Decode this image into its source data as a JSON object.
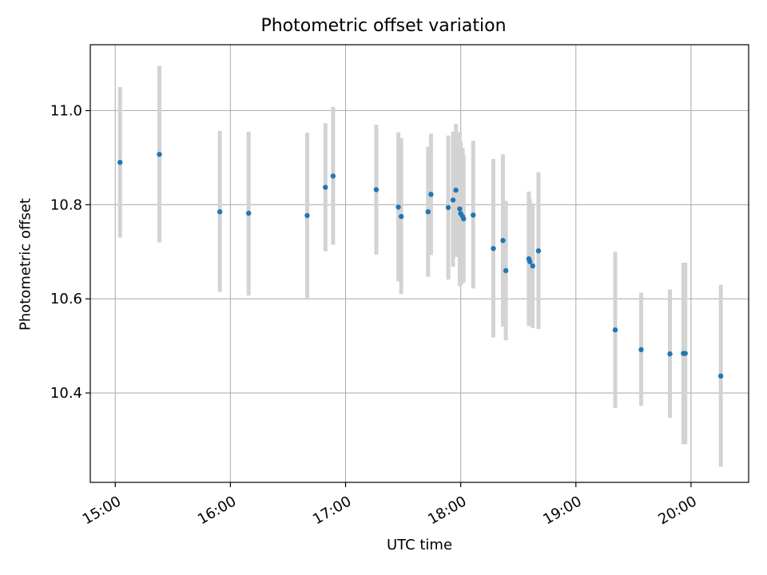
{
  "chart_data": {
    "type": "scatter",
    "title": "Photometric offset variation",
    "xlabel": "UTC time",
    "ylabel": "Photometric offset",
    "xlim": [
      "14:47",
      "20:30"
    ],
    "ylim": [
      10.21,
      11.14
    ],
    "xticks": [
      "15:00",
      "16:00",
      "17:00",
      "18:00",
      "19:00",
      "20:00"
    ],
    "yticks": [
      "10.4",
      "10.6",
      "10.8",
      "11.0"
    ],
    "grid": true,
    "colors": {
      "point": "#1f77b4",
      "errorbar": "#d3d3d3",
      "grid": "#b0b0b0"
    },
    "points": [
      {
        "x": "15:02:30",
        "y": 10.89,
        "ylow": 10.73,
        "yhigh": 11.05
      },
      {
        "x": "15:23:00",
        "y": 10.907,
        "ylow": 10.72,
        "yhigh": 11.095
      },
      {
        "x": "15:54:30",
        "y": 10.785,
        "ylow": 10.615,
        "yhigh": 10.957
      },
      {
        "x": "16:09:30",
        "y": 10.782,
        "ylow": 10.607,
        "yhigh": 10.955
      },
      {
        "x": "16:40:00",
        "y": 10.777,
        "ylow": 10.598,
        "yhigh": 10.953
      },
      {
        "x": "16:49:30",
        "y": 10.837,
        "ylow": 10.701,
        "yhigh": 10.973
      },
      {
        "x": "16:53:30",
        "y": 10.861,
        "ylow": 10.715,
        "yhigh": 11.008
      },
      {
        "x": "17:16:00",
        "y": 10.832,
        "ylow": 10.694,
        "yhigh": 10.97
      },
      {
        "x": "17:27:30",
        "y": 10.795,
        "ylow": 10.637,
        "yhigh": 10.954
      },
      {
        "x": "17:29:00",
        "y": 10.775,
        "ylow": 10.61,
        "yhigh": 10.942
      },
      {
        "x": "17:43:00",
        "y": 10.785,
        "ylow": 10.647,
        "yhigh": 10.923
      },
      {
        "x": "17:44:30",
        "y": 10.822,
        "ylow": 10.693,
        "yhigh": 10.951
      },
      {
        "x": "17:53:30",
        "y": 10.794,
        "ylow": 10.641,
        "yhigh": 10.947
      },
      {
        "x": "17:56:00",
        "y": 10.81,
        "ylow": 10.668,
        "yhigh": 10.955
      },
      {
        "x": "17:57:30",
        "y": 10.831,
        "ylow": 10.689,
        "yhigh": 10.972
      },
      {
        "x": "17:59:30",
        "y": 10.791,
        "ylow": 10.627,
        "yhigh": 10.955
      },
      {
        "x": "18:00:00",
        "y": 10.781,
        "ylow": 10.628,
        "yhigh": 10.934
      },
      {
        "x": "18:01:00",
        "y": 10.775,
        "ylow": 10.633,
        "yhigh": 10.921
      },
      {
        "x": "18:01:30",
        "y": 10.77,
        "ylow": 10.636,
        "yhigh": 10.905
      },
      {
        "x": "18:06:30",
        "y": 10.778,
        "ylow": 10.622,
        "yhigh": 10.936
      },
      {
        "x": "18:17:00",
        "y": 10.707,
        "ylow": 10.518,
        "yhigh": 10.897
      },
      {
        "x": "18:22:00",
        "y": 10.724,
        "ylow": 10.541,
        "yhigh": 10.907
      },
      {
        "x": "18:23:30",
        "y": 10.66,
        "ylow": 10.512,
        "yhigh": 10.808
      },
      {
        "x": "18:35:30",
        "y": 10.685,
        "ylow": 10.542,
        "yhigh": 10.828
      },
      {
        "x": "18:36:00",
        "y": 10.679,
        "ylow": 10.545,
        "yhigh": 10.812
      },
      {
        "x": "18:37:30",
        "y": 10.67,
        "ylow": 10.538,
        "yhigh": 10.803
      },
      {
        "x": "18:40:30",
        "y": 10.702,
        "ylow": 10.536,
        "yhigh": 10.869
      },
      {
        "x": "19:20:30",
        "y": 10.534,
        "ylow": 10.368,
        "yhigh": 10.7
      },
      {
        "x": "19:34:00",
        "y": 10.492,
        "ylow": 10.373,
        "yhigh": 10.613
      },
      {
        "x": "19:49:00",
        "y": 10.483,
        "ylow": 10.347,
        "yhigh": 10.62
      },
      {
        "x": "19:56:00",
        "y": 10.484,
        "ylow": 10.291,
        "yhigh": 10.677
      },
      {
        "x": "19:57:00",
        "y": 10.484,
        "ylow": 10.291,
        "yhigh": 10.677
      },
      {
        "x": "20:15:30",
        "y": 10.436,
        "ylow": 10.243,
        "yhigh": 10.63
      }
    ]
  }
}
